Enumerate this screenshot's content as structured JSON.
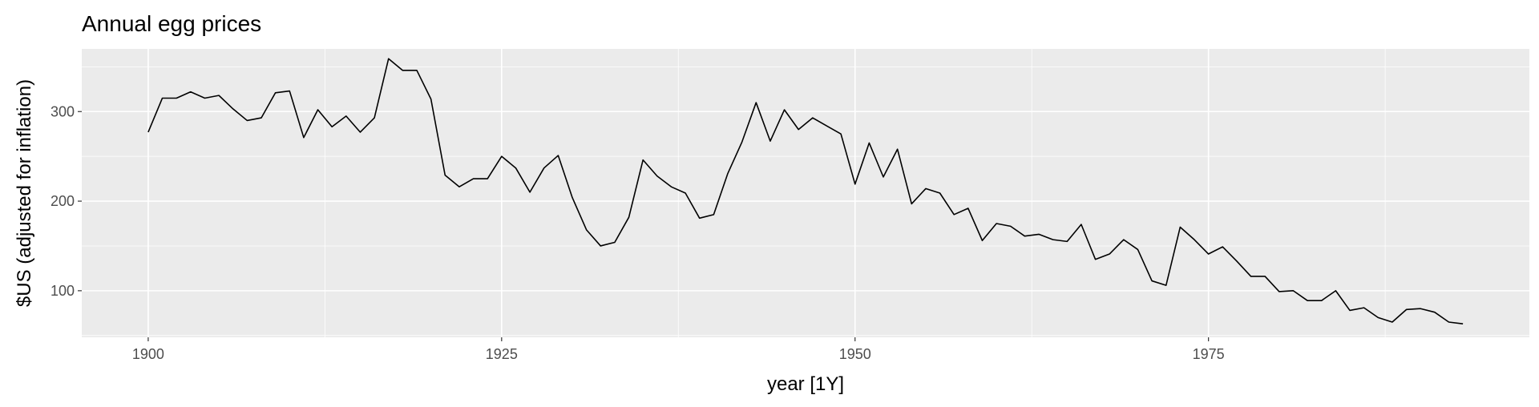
{
  "chart_data": {
    "type": "line",
    "title": "Annual egg prices",
    "xlabel": "year [1Y]",
    "ylabel": "$US (adjusted for inflation)",
    "xlim": [
      1895.3,
      1997.7
    ],
    "ylim": [
      48,
      370
    ],
    "x_ticks": [
      1900,
      1925,
      1950,
      1975
    ],
    "y_ticks": [
      100,
      200,
      300
    ],
    "grid": true,
    "background": "#ebebeb",
    "line_color": "#000000",
    "series": [
      {
        "x": [
          1900,
          1901,
          1902,
          1903,
          1904,
          1905,
          1906,
          1907,
          1908,
          1909,
          1910,
          1911,
          1912,
          1913,
          1914,
          1915,
          1916,
          1917,
          1918,
          1919,
          1920,
          1921,
          1922,
          1923,
          1924,
          1925,
          1926,
          1927,
          1928,
          1929,
          1930,
          1931,
          1932,
          1933,
          1934,
          1935,
          1936,
          1937,
          1938,
          1939,
          1940,
          1941,
          1942,
          1943,
          1944,
          1945,
          1946,
          1947,
          1948,
          1949,
          1950,
          1951,
          1952,
          1953,
          1954,
          1955,
          1956,
          1957,
          1958,
          1959,
          1960,
          1961,
          1962,
          1963,
          1964,
          1965,
          1966,
          1967,
          1968,
          1969,
          1970,
          1971,
          1972,
          1973,
          1974,
          1975,
          1976,
          1977,
          1978,
          1979,
          1980,
          1981,
          1982,
          1983,
          1984,
          1985,
          1986,
          1987,
          1988,
          1989,
          1990,
          1991,
          1992,
          1993
        ],
        "y": [
          277,
          315,
          315,
          322,
          315,
          318,
          303,
          290,
          293,
          321,
          323,
          271,
          302,
          283,
          295,
          277,
          293,
          359,
          346,
          346,
          314,
          229,
          216,
          225,
          225,
          250,
          237,
          210,
          237,
          251,
          204,
          168,
          150,
          154,
          182,
          246,
          228,
          216,
          209,
          181,
          185,
          231,
          266,
          310,
          267,
          302,
          280,
          293,
          284,
          275,
          219,
          265,
          227,
          258,
          197,
          214,
          209,
          185,
          192,
          156,
          175,
          172,
          161,
          163,
          157,
          155,
          174,
          135,
          141,
          157,
          146,
          111,
          106,
          171,
          157,
          141,
          149,
          133,
          116,
          116,
          99,
          100,
          89,
          89,
          100,
          78,
          81,
          70,
          65,
          79,
          80,
          76,
          65,
          63
        ]
      }
    ]
  }
}
